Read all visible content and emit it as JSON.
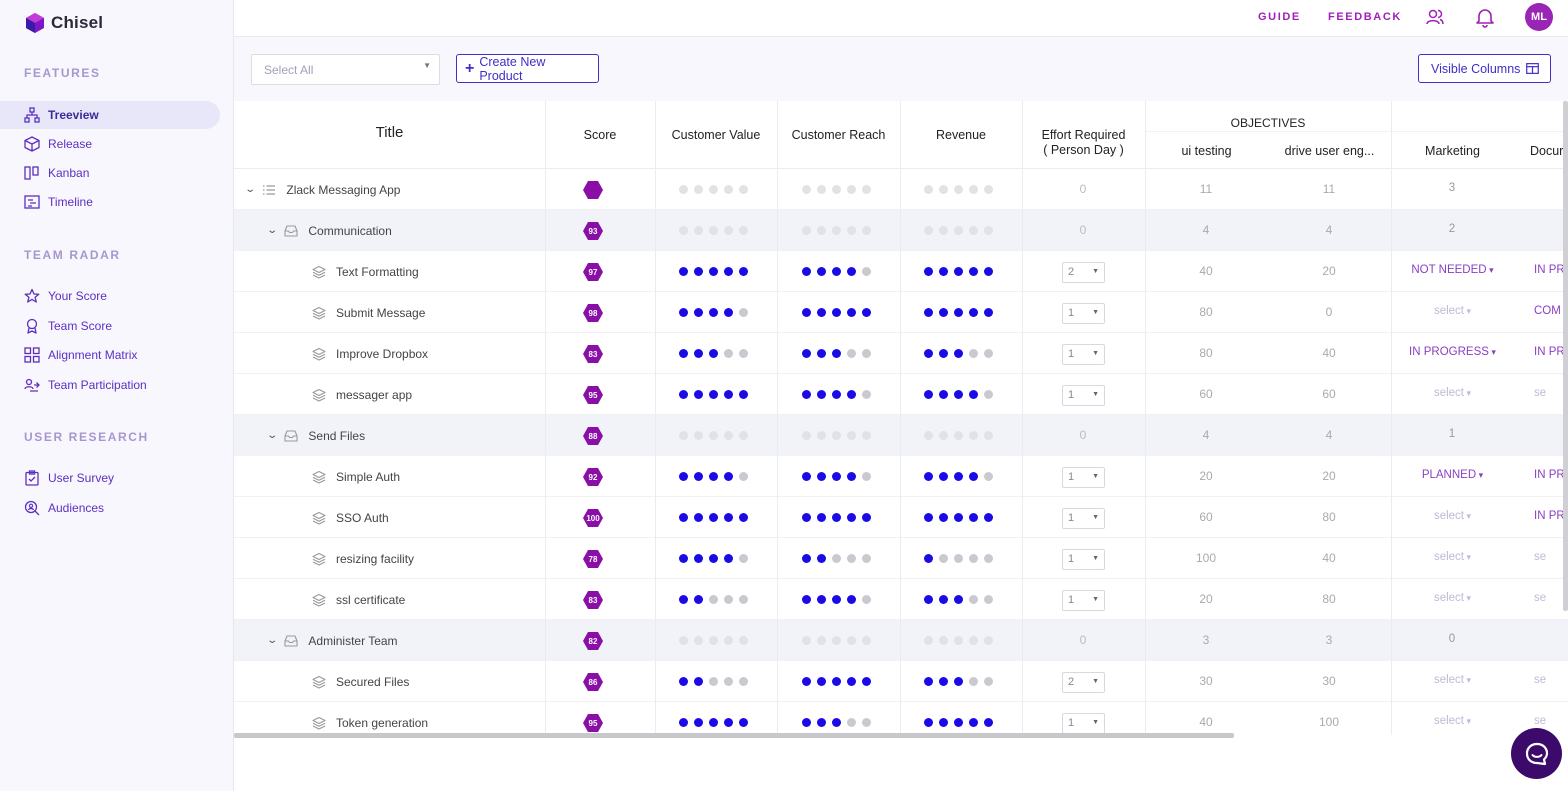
{
  "app": {
    "name": "Chisel"
  },
  "sidebar": {
    "sections": [
      {
        "label": "FEATURES",
        "items": [
          {
            "label": "Treeview",
            "icon": "treeview-icon",
            "active": true
          },
          {
            "label": "Release",
            "icon": "release-box-icon"
          },
          {
            "label": "Kanban",
            "icon": "kanban-icon"
          },
          {
            "label": "Timeline",
            "icon": "timeline-icon"
          }
        ]
      },
      {
        "label": "TEAM RADAR",
        "items": [
          {
            "label": "Your Score",
            "icon": "star-icon"
          },
          {
            "label": "Team Score",
            "icon": "award-icon"
          },
          {
            "label": "Alignment Matrix",
            "icon": "grid-icon"
          },
          {
            "label": "Team Participation",
            "icon": "participation-icon"
          }
        ]
      },
      {
        "label": "USER RESEARCH",
        "items": [
          {
            "label": "User Survey",
            "icon": "clipboard-check-icon"
          },
          {
            "label": "Audiences",
            "icon": "search-user-icon"
          }
        ]
      }
    ]
  },
  "topbar": {
    "guide": "GUIDE",
    "feedback": "FEEDBACK",
    "avatar_initials": "ML"
  },
  "toolbar": {
    "select_placeholder": "Select All",
    "create_label": "Create New Product",
    "visible_columns_label": "Visible Columns"
  },
  "table": {
    "headers": {
      "title": "Title",
      "score": "Score",
      "customer_value": "Customer Value",
      "customer_reach": "Customer Reach",
      "revenue": "Revenue",
      "effort_line1": "Effort Required",
      "effort_line2": "( Person Day )",
      "objectives": "OBJECTIVES",
      "ui_testing": "ui testing",
      "drive_user_eng": "drive user eng...",
      "marketing": "Marketing",
      "docu": "Docur"
    },
    "rows": [
      {
        "level": 0,
        "title": "Zlack Messaging App",
        "score": "",
        "cv": 0,
        "cr": 0,
        "rev": 0,
        "effort": "0",
        "ui": "11",
        "drive": "11",
        "marketing": "3",
        "docu": ""
      },
      {
        "level": 1,
        "title": "Communication",
        "score": "93",
        "cv": 0,
        "cr": 0,
        "rev": 0,
        "effort": "0",
        "ui": "4",
        "drive": "4",
        "marketing": "2",
        "docu": ""
      },
      {
        "level": 2,
        "title": "Text Formatting",
        "score": "97",
        "cv": 5,
        "cr": 4,
        "rev": 5,
        "effort": "2",
        "ui": "40",
        "drive": "20",
        "marketing": "NOT NEEDED",
        "docu": "IN PRO"
      },
      {
        "level": 2,
        "title": "Submit Message",
        "score": "98",
        "cv": 4,
        "cr": 5,
        "rev": 5,
        "effort": "1",
        "ui": "80",
        "drive": "0",
        "marketing": "select",
        "docu": "COM"
      },
      {
        "level": 2,
        "title": "Improve Dropbox",
        "score": "83",
        "cv": 3,
        "cr": 3,
        "rev": 3,
        "effort": "1",
        "ui": "80",
        "drive": "40",
        "marketing": "IN PROGRESS",
        "docu": "IN PRO"
      },
      {
        "level": 2,
        "title": "messager app",
        "score": "95",
        "cv": 5,
        "cr": 4,
        "rev": 4,
        "effort": "1",
        "ui": "60",
        "drive": "60",
        "marketing": "select",
        "docu": "se"
      },
      {
        "level": 1,
        "title": "Send Files",
        "score": "88",
        "cv": 0,
        "cr": 0,
        "rev": 0,
        "effort": "0",
        "ui": "4",
        "drive": "4",
        "marketing": "1",
        "docu": ""
      },
      {
        "level": 2,
        "title": "Simple Auth",
        "score": "92",
        "cv": 4,
        "cr": 4,
        "rev": 4,
        "effort": "1",
        "ui": "20",
        "drive": "20",
        "marketing": "PLANNED",
        "docu": "IN PRO"
      },
      {
        "level": 2,
        "title": "SSO Auth",
        "score": "100",
        "cv": 5,
        "cr": 5,
        "rev": 5,
        "effort": "1",
        "ui": "60",
        "drive": "80",
        "marketing": "select",
        "docu": "IN PRO"
      },
      {
        "level": 2,
        "title": "resizing facility",
        "score": "78",
        "cv": 4,
        "cr": 2,
        "rev": 1,
        "effort": "1",
        "ui": "100",
        "drive": "40",
        "marketing": "select",
        "docu": "se"
      },
      {
        "level": 2,
        "title": "ssl certificate",
        "score": "83",
        "cv": 2,
        "cr": 4,
        "rev": 3,
        "effort": "1",
        "ui": "20",
        "drive": "80",
        "marketing": "select",
        "docu": "se"
      },
      {
        "level": 1,
        "title": "Administer Team",
        "score": "82",
        "cv": 0,
        "cr": 0,
        "rev": 0,
        "effort": "0",
        "ui": "3",
        "drive": "3",
        "marketing": "0",
        "docu": ""
      },
      {
        "level": 2,
        "title": "Secured Files",
        "score": "86",
        "cv": 2,
        "cr": 5,
        "rev": 3,
        "effort": "2",
        "ui": "30",
        "drive": "30",
        "marketing": "select",
        "docu": "se"
      },
      {
        "level": 2,
        "title": "Token generation",
        "score": "95",
        "cv": 5,
        "cr": 3,
        "rev": 5,
        "effort": "1",
        "ui": "40",
        "drive": "100",
        "marketing": "select",
        "docu": "se"
      }
    ]
  },
  "colors": {
    "accent": "#3f2ec8",
    "brand_purple": "#a020b8",
    "score_hex": "#8a0fa6",
    "dot_on": "#1a0be6",
    "dot_off": "#c9c9cf"
  }
}
